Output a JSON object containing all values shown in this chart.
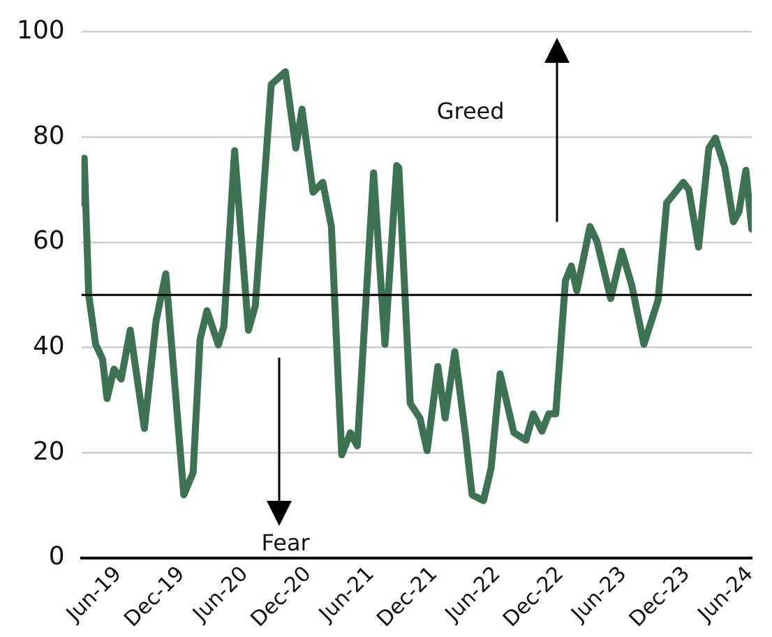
{
  "chart_data": {
    "type": "line",
    "x": [
      "2019-02-17",
      "2019-02-22",
      "2019-03-07",
      "2019-03-27",
      "2019-04-16",
      "2019-04-29",
      "2019-05-19",
      "2019-06-09",
      "2019-07-05",
      "2019-08-15",
      "2019-09-18",
      "2019-10-16",
      "2019-12-07",
      "2020-01-03",
      "2020-01-23",
      "2020-02-12",
      "2020-03-16",
      "2020-04-01",
      "2020-05-02",
      "2020-06-11",
      "2020-07-01",
      "2020-08-16",
      "2020-09-26",
      "2020-10-26",
      "2020-11-13",
      "2020-12-15",
      "2021-01-12",
      "2021-02-06",
      "2021-02-27",
      "2021-03-08",
      "2021-04-02",
      "2021-04-22",
      "2021-06-08",
      "2021-07-11",
      "2021-08-14",
      "2021-08-20",
      "2021-09-22",
      "2021-10-20",
      "2021-11-10",
      "2021-12-11",
      "2022-01-01",
      "2022-01-29",
      "2022-02-28",
      "2022-03-20",
      "2022-04-22",
      "2022-05-14",
      "2022-06-09",
      "2022-07-19",
      "2022-08-23",
      "2022-09-13",
      "2022-10-08",
      "2022-10-28",
      "2022-11-17",
      "2022-12-15",
      "2023-01-01",
      "2023-01-17",
      "2023-02-24",
      "2023-03-16",
      "2023-04-25",
      "2023-05-27",
      "2023-06-25",
      "2023-07-30",
      "2023-09-09",
      "2023-10-04",
      "2023-11-21",
      "2023-12-07",
      "2024-01-04",
      "2024-02-03",
      "2024-02-22",
      "2024-03-20",
      "2024-04-14",
      "2024-04-30",
      "2024-05-20",
      "2024-06-06"
    ],
    "series": [
      {
        "color": "#3d7352",
        "values": [
          67.5,
          76,
          50,
          40.6,
          37.8,
          30.3,
          35.9,
          34,
          43.3,
          24.6,
          45.1,
          54,
          12,
          16.2,
          41.5,
          47,
          40.5,
          44,
          77.4,
          43.3,
          48,
          90,
          92.4,
          77.9,
          85.3,
          69.5,
          71.4,
          63,
          32,
          19.6,
          23.8,
          21.3,
          73.2,
          40.6,
          74.6,
          74.2,
          29.4,
          26.6,
          20.4,
          36.4,
          26.6,
          39.2,
          23.8,
          12,
          10.9,
          17.1,
          35,
          23.8,
          22.4,
          27.4,
          24.1,
          27.4,
          27.4,
          52.7,
          55.5,
          50.8,
          63,
          60.2,
          49.3,
          58.3,
          51.8,
          40.6,
          49,
          67.5,
          71.4,
          70,
          59.1,
          77.9,
          79.8,
          74.2,
          63.9,
          65.8,
          73.7,
          62.5
        ]
      }
    ],
    "xlim": [
      "2019-02-14",
      "2024-06-06"
    ],
    "xticks": [
      {
        "value": "2019-06-01",
        "label": "Jun-19"
      },
      {
        "value": "2019-12-01",
        "label": "Dec-19"
      },
      {
        "value": "2020-06-01",
        "label": "Jun-20"
      },
      {
        "value": "2020-12-01",
        "label": "Dec-20"
      },
      {
        "value": "2021-06-01",
        "label": "Jun-21"
      },
      {
        "value": "2021-12-01",
        "label": "Dec-21"
      },
      {
        "value": "2022-06-01",
        "label": "Jun-22"
      },
      {
        "value": "2022-12-01",
        "label": "Dec-22"
      },
      {
        "value": "2023-06-01",
        "label": "Jun-23"
      },
      {
        "value": "2023-12-01",
        "label": "Dec-23"
      },
      {
        "value": "2024-06-01",
        "label": "Jun-24"
      }
    ],
    "ylim": [
      0,
      100
    ],
    "yticks": [
      0,
      20,
      40,
      60,
      80,
      100
    ],
    "grid": "y",
    "legend": false,
    "marker": "none",
    "line_style": "solid",
    "ref_lines": [
      {
        "axis": "y",
        "value": 50,
        "color": "#000000"
      }
    ],
    "annotations": [
      "Greed",
      "Fear"
    ]
  }
}
